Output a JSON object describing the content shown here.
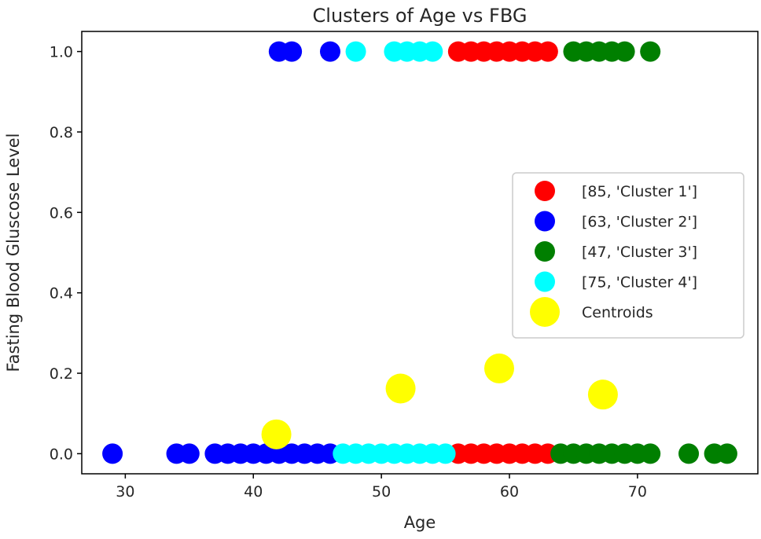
{
  "chart_data": {
    "type": "scatter",
    "title": "Clusters of Age vs FBG",
    "xlabel": "Age",
    "ylabel": "Fasting Blood Gluscose Level",
    "xlim": [
      26.6,
      79.4
    ],
    "ylim": [
      -0.05,
      1.05
    ],
    "xticks": [
      30,
      40,
      50,
      60,
      70
    ],
    "yticks": [
      0.0,
      0.2,
      0.4,
      0.6,
      0.8,
      1.0
    ],
    "ytick_labels": [
      "0.0",
      "0.2",
      "0.4",
      "0.6",
      "0.8",
      "1.0"
    ],
    "legend_position": "center-right",
    "grid": false,
    "series": [
      {
        "name": "[85, 'Cluster 1']",
        "color": "#ff0000",
        "points": [
          [
            56,
            1
          ],
          [
            57,
            1
          ],
          [
            58,
            1
          ],
          [
            59,
            1
          ],
          [
            60,
            1
          ],
          [
            61,
            1
          ],
          [
            62,
            1
          ],
          [
            63,
            1
          ],
          [
            56,
            0
          ],
          [
            57,
            0
          ],
          [
            58,
            0
          ],
          [
            59,
            0
          ],
          [
            60,
            0
          ],
          [
            61,
            0
          ],
          [
            62,
            0
          ],
          [
            63,
            0
          ]
        ]
      },
      {
        "name": "[63, 'Cluster 2']",
        "color": "#0000ff",
        "points": [
          [
            42,
            1
          ],
          [
            43,
            1
          ],
          [
            46,
            1
          ],
          [
            29,
            0
          ],
          [
            34,
            0
          ],
          [
            35,
            0
          ],
          [
            37,
            0
          ],
          [
            38,
            0
          ],
          [
            39,
            0
          ],
          [
            40,
            0
          ],
          [
            41,
            0
          ],
          [
            42,
            0
          ],
          [
            43,
            0
          ],
          [
            44,
            0
          ],
          [
            45,
            0
          ],
          [
            46,
            0
          ]
        ]
      },
      {
        "name": "[47, 'Cluster 3']",
        "color": "#007f00",
        "points": [
          [
            65,
            1
          ],
          [
            66,
            1
          ],
          [
            67,
            1
          ],
          [
            68,
            1
          ],
          [
            69,
            1
          ],
          [
            71,
            1
          ],
          [
            64,
            0
          ],
          [
            65,
            0
          ],
          [
            66,
            0
          ],
          [
            67,
            0
          ],
          [
            68,
            0
          ],
          [
            69,
            0
          ],
          [
            70,
            0
          ],
          [
            71,
            0
          ],
          [
            74,
            0
          ],
          [
            76,
            0
          ],
          [
            77,
            0
          ]
        ]
      },
      {
        "name": "[75, 'Cluster 4']",
        "color": "#00ffff",
        "points": [
          [
            48,
            1
          ],
          [
            51,
            1
          ],
          [
            52,
            1
          ],
          [
            53,
            1
          ],
          [
            54,
            1
          ],
          [
            47,
            0
          ],
          [
            48,
            0
          ],
          [
            49,
            0
          ],
          [
            50,
            0
          ],
          [
            51,
            0
          ],
          [
            52,
            0
          ],
          [
            53,
            0
          ],
          [
            54,
            0
          ],
          [
            55,
            0
          ]
        ]
      },
      {
        "name": "Centroids",
        "color": "#ffff00",
        "points": [
          [
            41.8,
            0.048
          ],
          [
            51.5,
            0.162
          ],
          [
            59.2,
            0.212
          ],
          [
            67.3,
            0.147
          ]
        ]
      }
    ]
  }
}
